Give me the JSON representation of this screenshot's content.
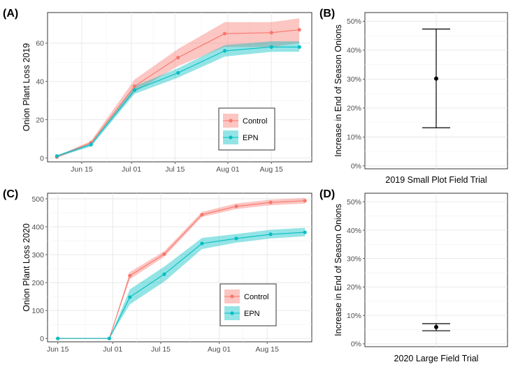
{
  "colors": {
    "control": "#F8766D",
    "epn": "#00BFC4",
    "control_band": "#F8766D",
    "epn_band": "#00BFC4",
    "grid_major": "#e6e6e6",
    "grid_minor": "#f2f2f2",
    "panel_border": "#333333"
  },
  "chart_data": [
    {
      "id": "A",
      "panel_label": "(A)",
      "type": "line",
      "ylabel": "Onion Plant Loss 2019",
      "xlabel": "",
      "x_type": "date",
      "xlim": [
        "2019-06-04",
        "2019-08-28"
      ],
      "ylim": [
        -2,
        76
      ],
      "xticks": [
        {
          "date": "2019-06-15",
          "label": "Jun 15"
        },
        {
          "date": "2019-07-01",
          "label": "Jul 01"
        },
        {
          "date": "2019-07-15",
          "label": "Jul 15"
        },
        {
          "date": "2019-08-01",
          "label": "Aug 01"
        },
        {
          "date": "2019-08-15",
          "label": "Aug 15"
        }
      ],
      "yticks": [
        0,
        20,
        40,
        60
      ],
      "legend": {
        "position": "bottom-right",
        "items": [
          "Control",
          "EPN"
        ]
      },
      "series": [
        {
          "name": "Control",
          "x": [
            "2019-06-07",
            "2019-06-18",
            "2019-07-02",
            "2019-07-16",
            "2019-07-31",
            "2019-08-15",
            "2019-08-24"
          ],
          "y": [
            0.5,
            8,
            37.5,
            52.5,
            65,
            65.5,
            67
          ],
          "lower": [
            0,
            7,
            34.5,
            48,
            58,
            58,
            60
          ],
          "upper": [
            1,
            9,
            41,
            57,
            71,
            71,
            73
          ]
        },
        {
          "name": "EPN",
          "x": [
            "2019-06-07",
            "2019-06-18",
            "2019-07-02",
            "2019-07-16",
            "2019-07-31",
            "2019-08-15",
            "2019-08-24"
          ],
          "y": [
            1,
            7,
            35.5,
            44.5,
            56,
            58,
            58
          ],
          "lower": [
            0.5,
            6,
            33.5,
            42,
            53,
            55.5,
            55.5
          ],
          "upper": [
            1.5,
            8,
            37.5,
            47,
            59,
            61,
            61
          ]
        }
      ]
    },
    {
      "id": "B",
      "panel_label": "(B)",
      "type": "errorbar",
      "ylabel": "Increase in End of Season Onions",
      "xlabel": "2019 Small Plot Field Trial",
      "ylim": [
        -1,
        53
      ],
      "yticks": [
        0,
        10,
        20,
        30,
        40,
        50
      ],
      "ytick_labels": [
        "0%",
        "10%",
        "20%",
        "30%",
        "40%",
        "50%"
      ],
      "estimate": 30.2,
      "lower": 13.2,
      "upper": 47.3
    },
    {
      "id": "C",
      "panel_label": "(C)",
      "type": "line",
      "ylabel": "Onion Plant Loss 2020",
      "xlabel": "",
      "x_type": "date",
      "xlim": [
        "2020-06-12",
        "2020-08-28"
      ],
      "ylim": [
        -12,
        520
      ],
      "xticks": [
        {
          "date": "2020-06-15",
          "label": "Jun 15"
        },
        {
          "date": "2020-07-01",
          "label": "Jul 01"
        },
        {
          "date": "2020-07-15",
          "label": "Jul 15"
        },
        {
          "date": "2020-08-01",
          "label": "Aug 01"
        },
        {
          "date": "2020-08-15",
          "label": "Aug 15"
        }
      ],
      "yticks": [
        0,
        100,
        200,
        300,
        400,
        500
      ],
      "legend": {
        "position": "bottom-center",
        "items": [
          "Control",
          "EPN"
        ]
      },
      "series": [
        {
          "name": "Control",
          "x": [
            "2020-06-15",
            "2020-06-30",
            "2020-07-06",
            "2020-07-16",
            "2020-07-27",
            "2020-08-06",
            "2020-08-16",
            "2020-08-26"
          ],
          "y": [
            0,
            0,
            225,
            302,
            443,
            473,
            487,
            493
          ],
          "lower": [
            0,
            0,
            212,
            292,
            435,
            463,
            477,
            483
          ],
          "upper": [
            0,
            0,
            238,
            312,
            453,
            483,
            497,
            503
          ]
        },
        {
          "name": "EPN",
          "x": [
            "2020-06-15",
            "2020-06-30",
            "2020-07-06",
            "2020-07-16",
            "2020-07-27",
            "2020-08-06",
            "2020-08-16",
            "2020-08-26"
          ],
          "y": [
            0,
            0,
            148,
            230,
            340,
            358,
            373,
            380
          ],
          "lower": [
            0,
            0,
            122,
            203,
            320,
            343,
            358,
            366
          ],
          "upper": [
            0,
            0,
            176,
            257,
            360,
            374,
            389,
            396
          ]
        }
      ]
    },
    {
      "id": "D",
      "panel_label": "(D)",
      "type": "errorbar",
      "ylabel": "Increase in End of Season Onions",
      "xlabel": "2020 Large Field Trial",
      "ylim": [
        -1,
        53
      ],
      "yticks": [
        0,
        10,
        20,
        30,
        40,
        50
      ],
      "ytick_labels": [
        "0%",
        "10%",
        "20%",
        "30%",
        "40%",
        "50%"
      ],
      "estimate": 5.9,
      "lower": 4.6,
      "upper": 7.1
    }
  ]
}
